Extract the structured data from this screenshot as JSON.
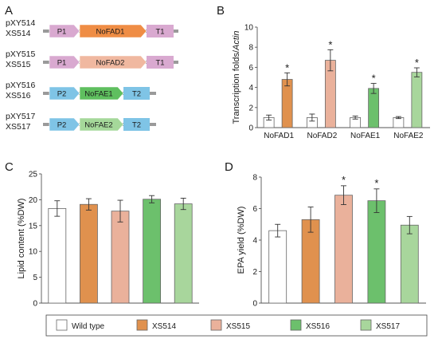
{
  "figure": {
    "panel_letters": [
      "A",
      "B",
      "C",
      "D"
    ]
  },
  "constructs": [
    {
      "plasmid": "pXY514",
      "strain": "XS514",
      "promoter": "P1",
      "gene": "NoFAD1",
      "terminator": "T1",
      "promoter_color": "#d9a9d0",
      "gene_color": "#ef8d45",
      "terminator_color": "#d9a9d0"
    },
    {
      "plasmid": "pXY515",
      "strain": "XS515",
      "promoter": "P1",
      "gene": "NoFAD2",
      "terminator": "T1",
      "promoter_color": "#d9a9d0",
      "gene_color": "#f0b8a0",
      "terminator_color": "#d9a9d0"
    },
    {
      "plasmid": "pXY516",
      "strain": "XS516",
      "promoter": "P2",
      "gene": "NoFAE1",
      "terminator": "T2",
      "promoter_color": "#7fc4e6",
      "gene_color": "#5fbf5f",
      "terminator_color": "#7fc4e6"
    },
    {
      "plasmid": "pXY517",
      "strain": "XS517",
      "promoter": "P2",
      "gene": "NoFAE2",
      "terminator": "T2",
      "promoter_color": "#7fc4e6",
      "gene_color": "#a5d89a",
      "terminator_color": "#7fc4e6"
    }
  ],
  "legend": {
    "entries": [
      {
        "label": "Wild type",
        "color": "#ffffff"
      },
      {
        "label": "XS514",
        "color": "#e0914e"
      },
      {
        "label": "XS515",
        "color": "#eab19b"
      },
      {
        "label": "XS516",
        "color": "#6cc06c"
      },
      {
        "label": "XS517",
        "color": "#a8d69c"
      }
    ]
  },
  "chart_data": [
    {
      "panel": "B",
      "type": "bar",
      "ylabel_plain": "Transcription folds/",
      "ylabel_italic": "Actin",
      "ylim": [
        0,
        10
      ],
      "yticks": [
        0,
        2,
        4,
        6,
        8,
        10
      ],
      "categories": [
        "NoFAD1",
        "NoFAD2",
        "NoFAE1",
        "NoFAE2"
      ],
      "series": [
        {
          "values": [
            1.0,
            1.0,
            1.0,
            1.0
          ],
          "errors": [
            0.25,
            0.35,
            0.15,
            0.1
          ],
          "colors": [
            "#ffffff",
            "#ffffff",
            "#ffffff",
            "#ffffff"
          ]
        },
        {
          "values": [
            4.8,
            6.7,
            3.9,
            5.5
          ],
          "errors": [
            0.65,
            1.05,
            0.5,
            0.45
          ],
          "colors": [
            "#e0914e",
            "#eab19b",
            "#6cc06c",
            "#a8d69c"
          ]
        }
      ],
      "significance": [
        {
          "category": "NoFAD1",
          "mark": "*"
        },
        {
          "category": "NoFAD2",
          "mark": "*"
        },
        {
          "category": "NoFAE1",
          "mark": "*"
        },
        {
          "category": "NoFAE2",
          "mark": "*"
        }
      ]
    },
    {
      "panel": "C",
      "type": "bar",
      "ylabel": "Lipid content (%DW)",
      "ylim": [
        0,
        25
      ],
      "yticks": [
        0,
        5,
        10,
        15,
        20,
        25
      ],
      "categories": [
        "Wild type",
        "XS514",
        "XS515",
        "XS516",
        "XS517"
      ],
      "values": [
        18.3,
        19.1,
        17.8,
        20.1,
        19.2
      ],
      "errors": [
        1.5,
        1.1,
        2.1,
        0.7,
        1.1
      ],
      "colors": [
        "#ffffff",
        "#e0914e",
        "#eab19b",
        "#6cc06c",
        "#a8d69c"
      ],
      "significance": []
    },
    {
      "panel": "D",
      "type": "bar",
      "ylabel": "EPA yield (%DW)",
      "ylim": [
        0,
        8
      ],
      "yticks": [
        0,
        2,
        4,
        6,
        8
      ],
      "categories": [
        "Wild type",
        "XS514",
        "XS515",
        "XS516",
        "XS517"
      ],
      "values": [
        4.6,
        5.3,
        6.85,
        6.5,
        4.95
      ],
      "errors": [
        0.4,
        0.8,
        0.6,
        0.75,
        0.55
      ],
      "colors": [
        "#ffffff",
        "#e0914e",
        "#eab19b",
        "#6cc06c",
        "#a8d69c"
      ],
      "significance": [
        {
          "category": "XS515",
          "mark": "*"
        },
        {
          "category": "XS516",
          "mark": "*"
        }
      ]
    }
  ]
}
